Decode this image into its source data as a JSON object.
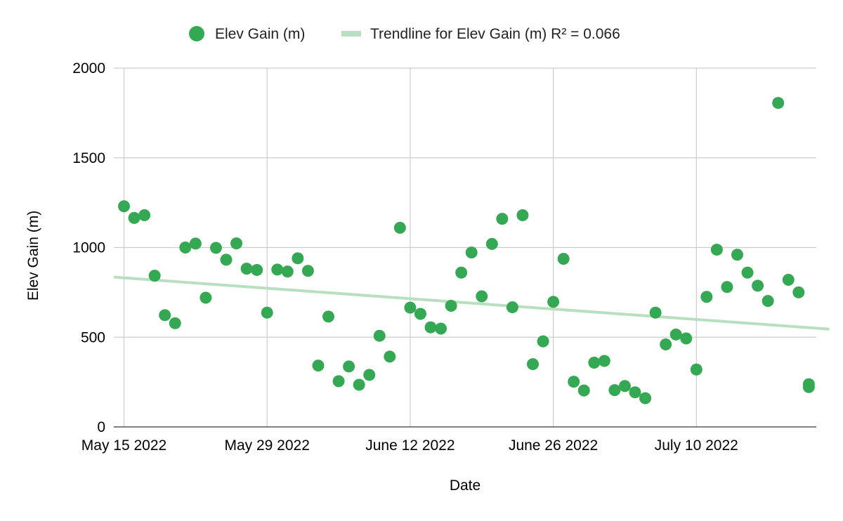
{
  "chart_data": {
    "type": "scatter",
    "title": "",
    "xlabel": "Date",
    "ylabel": "Elev Gain (m)",
    "xlim_day": [
      0,
      69
    ],
    "ylim": [
      0,
      2000
    ],
    "y_ticks": [
      0,
      500,
      1000,
      1500,
      2000
    ],
    "x_ticks": [
      {
        "day": 0,
        "label": "May 15 2022"
      },
      {
        "day": 14,
        "label": "May 29 2022"
      },
      {
        "day": 28,
        "label": "June 12 2022"
      },
      {
        "day": 42,
        "label": "June 26 2022"
      },
      {
        "day": 56,
        "label": "July 10 2022"
      }
    ],
    "grid": true,
    "legend_position": "top",
    "colors": {
      "points": "#34a853",
      "trendline": "#b7dfc0",
      "grid": "#cccccc",
      "axis": "#333333"
    },
    "series": [
      {
        "name": "Elev Gain (m)",
        "x_day": [
          0,
          1,
          2,
          3,
          4,
          5,
          6,
          7,
          8,
          9,
          10,
          11,
          12,
          13,
          14,
          15,
          16,
          17,
          18,
          19,
          20,
          21,
          22,
          23,
          24,
          25,
          26,
          27,
          28,
          29,
          30,
          31,
          32,
          33,
          34,
          35,
          36,
          37,
          38,
          39,
          40,
          41,
          42,
          43,
          44,
          45,
          46,
          47,
          48,
          49,
          50,
          51,
          52,
          53,
          54,
          55,
          56,
          57,
          58,
          59,
          60,
          61,
          62,
          63,
          64,
          65,
          66,
          67,
          67
        ],
        "values": [
          1230,
          1165,
          1180,
          843,
          623,
          578,
          1000,
          1022,
          720,
          998,
          932,
          1023,
          882,
          875,
          637,
          877,
          866,
          940,
          870,
          342,
          615,
          255,
          337,
          235,
          290,
          508,
          392,
          1110,
          665,
          630,
          555,
          548,
          675,
          860,
          972,
          728,
          1020,
          1160,
          667,
          1180,
          350,
          477,
          697,
          937,
          252,
          203,
          358,
          368,
          205,
          228,
          193,
          160,
          637,
          460,
          515,
          493,
          320,
          725,
          988,
          780,
          960,
          860,
          787,
          702,
          1806,
          820,
          750,
          238,
          222
        ]
      }
    ],
    "trendline": {
      "name": "Trendline for Elev Gain (m)",
      "legend_label": "Trendline for Elev Gain (m) R² = 0.066",
      "r_squared": 0.066,
      "start": {
        "day": -1,
        "value": 835
      },
      "end": {
        "day": 69,
        "value": 545
      }
    }
  }
}
